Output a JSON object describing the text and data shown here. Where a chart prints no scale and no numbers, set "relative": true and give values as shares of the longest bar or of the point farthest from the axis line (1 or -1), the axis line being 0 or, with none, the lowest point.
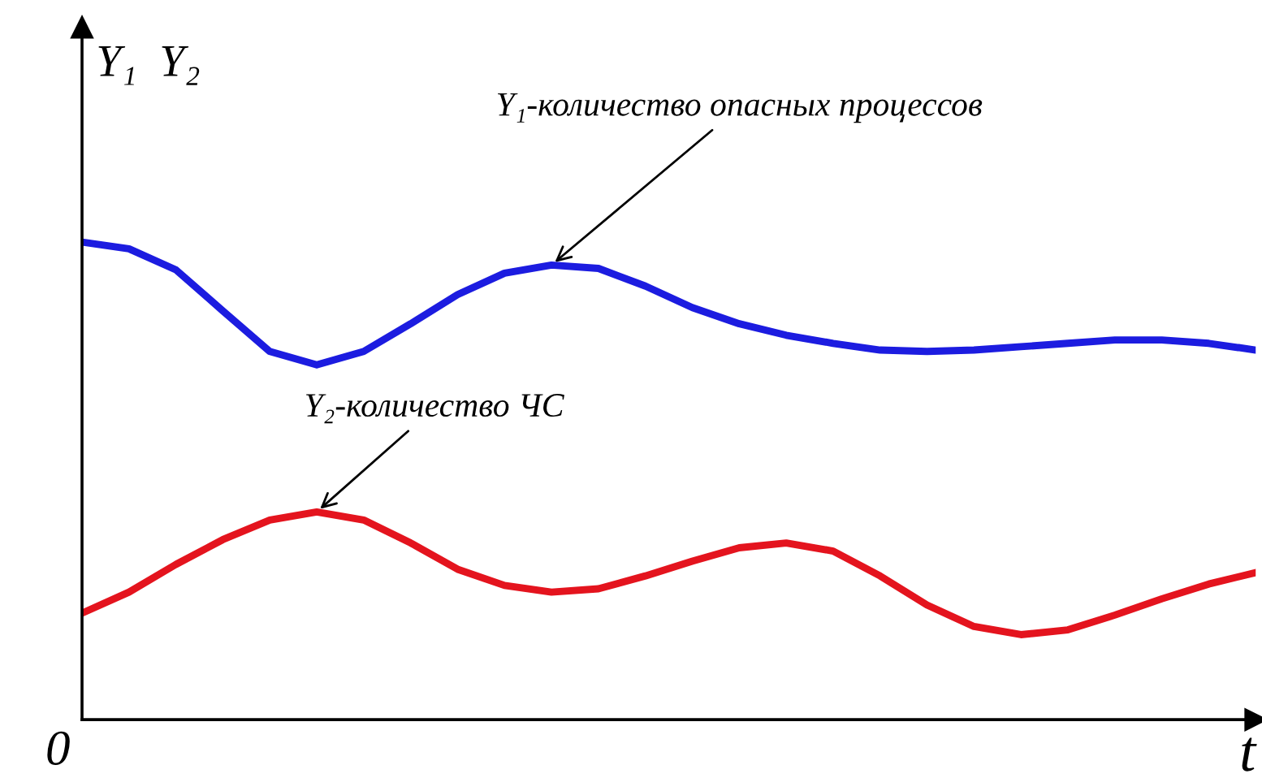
{
  "chart_data": {
    "type": "line",
    "relative": true,
    "xlabel": "t",
    "ylabel": "Y₁  Y₂",
    "categories": [
      null,
      null,
      null,
      null,
      null,
      null,
      null,
      null,
      null,
      null,
      null,
      null,
      null,
      null,
      null,
      null,
      null,
      null,
      null,
      null,
      null,
      null,
      null,
      null,
      null,
      null
    ],
    "series": [
      {
        "color": "#1c1ce0",
        "values": [
          1.0,
          0.986,
          0.942,
          0.856,
          0.771,
          0.743,
          0.771,
          0.829,
          0.89,
          0.935,
          0.952,
          0.945,
          0.908,
          0.863,
          0.829,
          0.805,
          0.788,
          0.774,
          0.771,
          0.774,
          0.781,
          0.788,
          0.795,
          0.795,
          0.788,
          0.774
        ]
      },
      {
        "color": "#e4141e",
        "values": [
          0.223,
          0.267,
          0.325,
          0.377,
          0.418,
          0.435,
          0.418,
          0.37,
          0.315,
          0.281,
          0.267,
          0.274,
          0.301,
          0.332,
          0.36,
          0.37,
          0.353,
          0.301,
          0.24,
          0.195,
          0.178,
          0.188,
          0.219,
          0.253,
          0.284,
          0.308
        ]
      }
    ],
    "annotations": [
      "Y₁-количество опасных процессов",
      "Y₂-количество ЧС",
      "0"
    ],
    "grid": false,
    "legend": false
  }
}
